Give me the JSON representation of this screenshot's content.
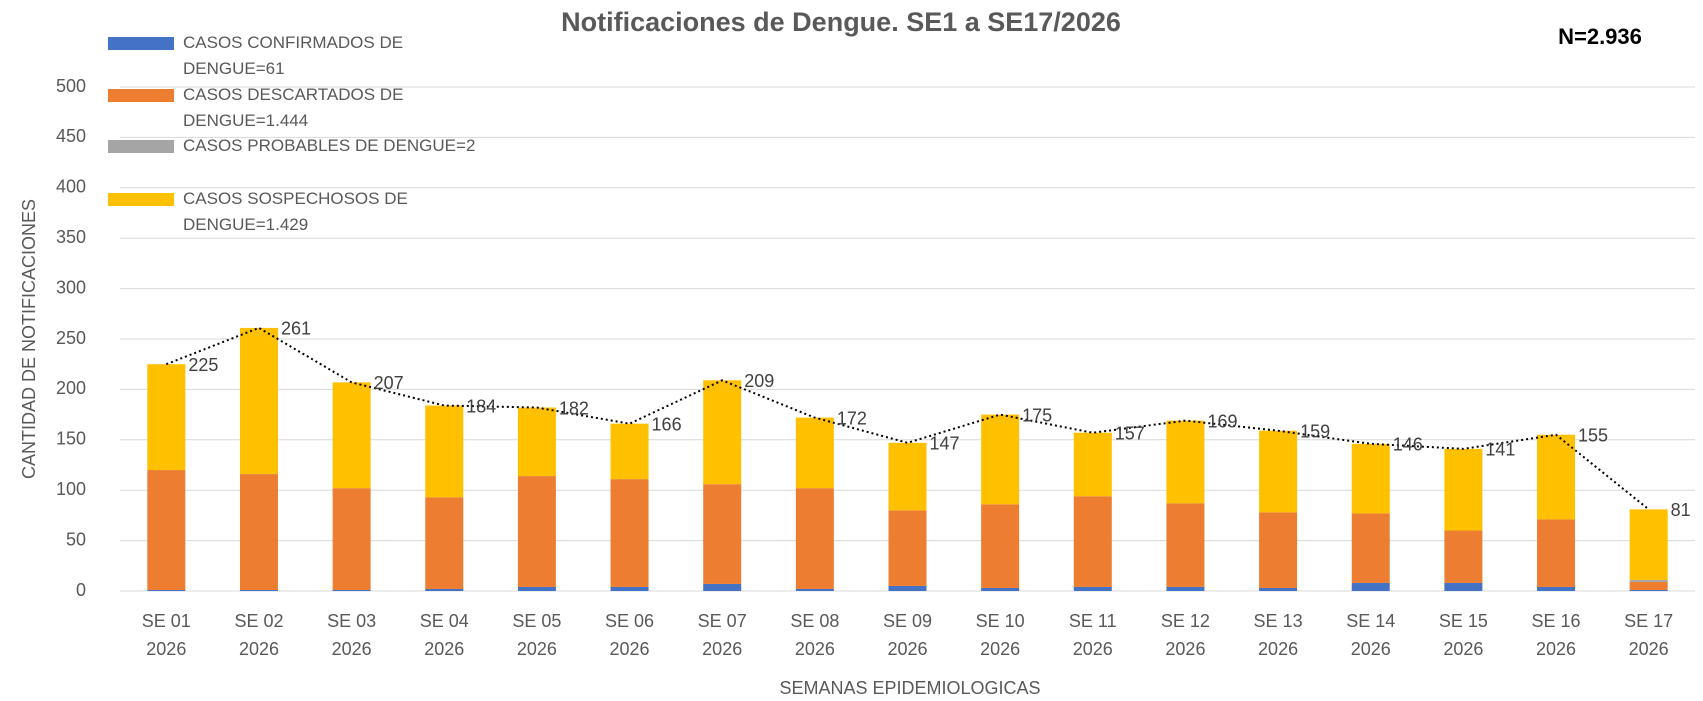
{
  "chart_data": {
    "type": "bar",
    "stacked": true,
    "title": "Notificaciones de Dengue. SE1 a SE17/2026",
    "annotation": "N=2.936",
    "x_label": "SEMANAS EPIDEMIOLOGICAS",
    "y_label": "CANTIDAD DE NOTIFICACIONES",
    "categories": [
      "SE 01 2026",
      "SE 02 2026",
      "SE 03 2026",
      "SE 04 2026",
      "SE 05 2026",
      "SE 06 2026",
      "SE 07 2026",
      "SE 08 2026",
      "SE 09 2026",
      "SE 10 2026",
      "SE 11 2026",
      "SE 12 2026",
      "SE 13 2026",
      "SE 14 2026",
      "SE 15 2026",
      "SE 16 2026",
      "SE 17 2026"
    ],
    "series": [
      {
        "name": "CASOS CONFIRMADOS DE DENGUE=61",
        "color": "#4472c4",
        "values": [
          1,
          1,
          1,
          2,
          4,
          4,
          7,
          2,
          5,
          3,
          4,
          4,
          3,
          8,
          8,
          4,
          1
        ]
      },
      {
        "name": "CASOS DESCARTADOS DE DENGUE=1.444",
        "color": "#ed7d31",
        "values": [
          119,
          115,
          101,
          91,
          110,
          107,
          99,
          100,
          75,
          83,
          90,
          83,
          75,
          69,
          52,
          67,
          8
        ]
      },
      {
        "name": "CASOS PROBABLES DE DENGUE=2",
        "color": "#a5a5a5",
        "values": [
          0,
          0,
          0,
          0,
          0,
          0,
          0,
          0,
          0,
          0,
          0,
          0,
          0,
          0,
          0,
          0,
          2
        ]
      },
      {
        "name": "CASOS SOSPECHOSOS DE DENGUE=1.429",
        "color": "#ffc000",
        "values": [
          105,
          145,
          105,
          91,
          68,
          55,
          103,
          70,
          67,
          89,
          63,
          82,
          81,
          69,
          81,
          84,
          70
        ]
      }
    ],
    "totals": {
      "color": "#000000",
      "values": [
        225,
        261,
        207,
        184,
        182,
        166,
        209,
        172,
        147,
        175,
        157,
        169,
        159,
        146,
        141,
        155,
        81
      ]
    },
    "ylim": [
      0,
      500
    ],
    "yticks": [
      0,
      50,
      100,
      150,
      200,
      250,
      300,
      350,
      400,
      450,
      500
    ],
    "grid": true,
    "legend": "top-left"
  }
}
